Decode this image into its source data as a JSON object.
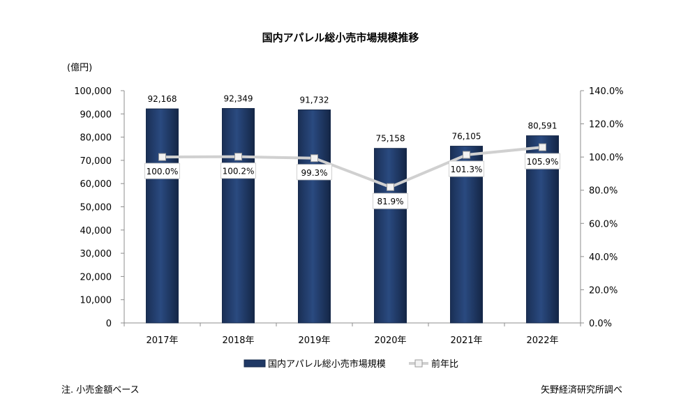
{
  "chart_data": {
    "type": "bar",
    "title": "国内アパレル総小売市場規模推移",
    "unit_label": "(億円)",
    "categories": [
      "2017年",
      "2018年",
      "2019年",
      "2020年",
      "2021年",
      "2022年"
    ],
    "series": [
      {
        "name": "国内アパレル総小売市場規模",
        "type": "bar",
        "axis": "left",
        "values": [
          92168,
          92349,
          91732,
          75158,
          76105,
          80591
        ],
        "labels": [
          "92,168",
          "92,349",
          "91,732",
          "75,158",
          "76,105",
          "80,591"
        ],
        "color": "#1f3864"
      },
      {
        "name": "前年比",
        "type": "line",
        "axis": "right",
        "values": [
          100.0,
          100.2,
          99.3,
          81.9,
          101.3,
          105.9
        ],
        "labels": [
          "100.0%",
          "100.2%",
          "99.3%",
          "81.9%",
          "101.3%",
          "105.9%"
        ],
        "color": "#d0d0d0"
      }
    ],
    "y_left": {
      "min": 0,
      "max": 100000,
      "ticks": [
        "0",
        "10,000",
        "20,000",
        "30,000",
        "40,000",
        "50,000",
        "60,000",
        "70,000",
        "80,000",
        "90,000",
        "100,000"
      ]
    },
    "y_right": {
      "min": 0,
      "max": 140,
      "ticks": [
        "0.0%",
        "20.0%",
        "40.0%",
        "60.0%",
        "80.0%",
        "100.0%",
        "120.0%",
        "140.0%"
      ]
    },
    "grid": false,
    "legend_position": "bottom"
  },
  "notes": {
    "left": "注. 小売金額ベース",
    "right": "矢野経済研究所調べ"
  }
}
